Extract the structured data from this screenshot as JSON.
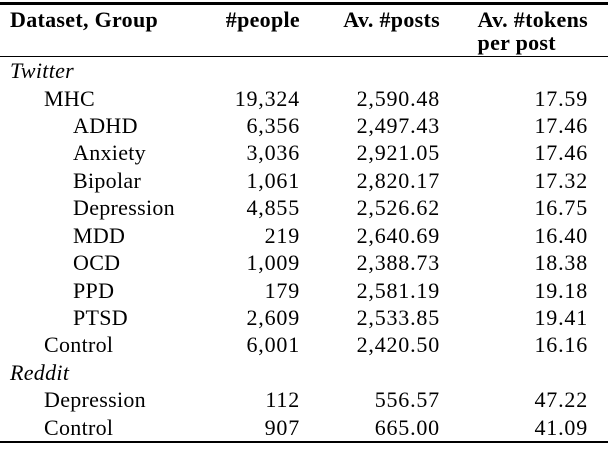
{
  "table": {
    "header": {
      "dataset_group": "Dataset, Group",
      "people": "#people",
      "av_posts": "Av. #posts",
      "av_tokens_line1": "Av. #tokens",
      "av_tokens_line2": "per post"
    },
    "rows": [
      {
        "label": "Twitter",
        "level": 0,
        "style": "section-italic",
        "people": "",
        "posts": "",
        "tokens": ""
      },
      {
        "label": "MHC",
        "level": 1,
        "style": "data",
        "people": "19,324",
        "posts": "2,590.48",
        "tokens": "17.59"
      },
      {
        "label": "ADHD",
        "level": 2,
        "style": "data",
        "people": "6,356",
        "posts": "2,497.43",
        "tokens": "17.46"
      },
      {
        "label": "Anxiety",
        "level": 2,
        "style": "data",
        "people": "3,036",
        "posts": "2,921.05",
        "tokens": "17.46"
      },
      {
        "label": "Bipolar",
        "level": 2,
        "style": "data",
        "people": "1,061",
        "posts": "2,820.17",
        "tokens": "17.32"
      },
      {
        "label": "Depression",
        "level": 2,
        "style": "data",
        "people": "4,855",
        "posts": "2,526.62",
        "tokens": "16.75"
      },
      {
        "label": "MDD",
        "level": 2,
        "style": "data",
        "people": "219",
        "posts": "2,640.69",
        "tokens": "16.40"
      },
      {
        "label": "OCD",
        "level": 2,
        "style": "data",
        "people": "1,009",
        "posts": "2,388.73",
        "tokens": "18.38"
      },
      {
        "label": "PPD",
        "level": 2,
        "style": "data",
        "people": "179",
        "posts": "2,581.19",
        "tokens": "19.18"
      },
      {
        "label": "PTSD",
        "level": 2,
        "style": "data",
        "people": "2,609",
        "posts": "2,533.85",
        "tokens": "19.41"
      },
      {
        "label": "Control",
        "level": 1,
        "style": "data",
        "people": "6,001",
        "posts": "2,420.50",
        "tokens": "16.16"
      },
      {
        "label": "Reddit",
        "level": 0,
        "style": "section-italic",
        "people": "",
        "posts": "",
        "tokens": ""
      },
      {
        "label": "Depression",
        "level": 1,
        "style": "data",
        "people": "112",
        "posts": "556.57",
        "tokens": "47.22"
      },
      {
        "label": "Control",
        "level": 1,
        "style": "data",
        "people": "907",
        "posts": "665.00",
        "tokens": "41.09"
      }
    ],
    "colors": {
      "text": "#000000",
      "background": "#ffffff",
      "rule": "#000000"
    }
  }
}
